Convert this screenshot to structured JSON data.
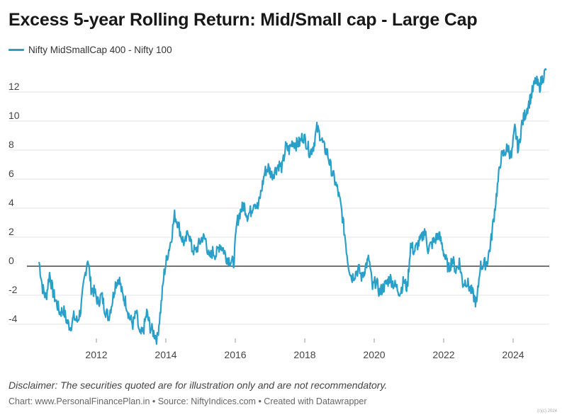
{
  "title": "Excess 5-year Rolling Return: Mid/Small cap - Large Cap",
  "legend": {
    "label": "Nifty MidSmallCap 400 - Nifty 100",
    "color": "#2aa0c9"
  },
  "disclaimer": "Disclaimer: The securities quoted are for illustration only and are not recommendatory.",
  "credit": "Chart: www.PersonalFinancePlan.in • Source: NiftyIndices.com • Created with Datawrapper",
  "watermark": "(r)(c) 2024",
  "chart_data": {
    "type": "line",
    "title": "Excess 5-year Rolling Return: Mid/Small cap - Large Cap",
    "xlabel": "",
    "ylabel": "",
    "xlim": [
      2010.3,
      2025.0
    ],
    "ylim": [
      -5.2,
      13.8
    ],
    "x_ticks": [
      2012,
      2014,
      2016,
      2018,
      2020,
      2022,
      2024
    ],
    "y_ticks": [
      -4,
      -2,
      0,
      2,
      4,
      6,
      8,
      10,
      12
    ],
    "grid": true,
    "zero_line": true,
    "series": [
      {
        "name": "Nifty MidSmallCap 400 - Nifty 100",
        "color": "#2aa0c9",
        "x": [
          2010.35,
          2010.45,
          2010.55,
          2010.65,
          2010.75,
          2010.85,
          2010.95,
          2011.05,
          2011.15,
          2011.25,
          2011.35,
          2011.45,
          2011.55,
          2011.65,
          2011.75,
          2011.85,
          2011.95,
          2012.05,
          2012.15,
          2012.25,
          2012.35,
          2012.45,
          2012.55,
          2012.65,
          2012.75,
          2012.85,
          2012.95,
          2013.05,
          2013.15,
          2013.25,
          2013.35,
          2013.45,
          2013.55,
          2013.65,
          2013.75,
          2013.85,
          2013.95,
          2014.05,
          2014.15,
          2014.25,
          2014.35,
          2014.45,
          2014.55,
          2014.65,
          2014.75,
          2014.85,
          2014.95,
          2015.05,
          2015.15,
          2015.25,
          2015.35,
          2015.45,
          2015.55,
          2015.65,
          2015.75,
          2015.85,
          2015.95,
          2016.05,
          2016.15,
          2016.25,
          2016.35,
          2016.45,
          2016.55,
          2016.65,
          2016.75,
          2016.85,
          2016.95,
          2017.05,
          2017.15,
          2017.25,
          2017.35,
          2017.45,
          2017.55,
          2017.65,
          2017.75,
          2017.85,
          2017.95,
          2018.05,
          2018.15,
          2018.25,
          2018.35,
          2018.45,
          2018.55,
          2018.65,
          2018.75,
          2018.85,
          2018.95,
          2019.05,
          2019.15,
          2019.25,
          2019.35,
          2019.45,
          2019.55,
          2019.65,
          2019.75,
          2019.85,
          2019.95,
          2020.05,
          2020.15,
          2020.25,
          2020.35,
          2020.45,
          2020.55,
          2020.65,
          2020.75,
          2020.85,
          2020.95,
          2021.05,
          2021.15,
          2021.25,
          2021.35,
          2021.45,
          2021.55,
          2021.65,
          2021.75,
          2021.85,
          2021.95,
          2022.05,
          2022.15,
          2022.25,
          2022.35,
          2022.45,
          2022.55,
          2022.65,
          2022.75,
          2022.85,
          2022.95,
          2023.05,
          2023.15,
          2023.25,
          2023.35,
          2023.45,
          2023.55,
          2023.65,
          2023.75,
          2023.85,
          2023.95,
          2024.05,
          2024.15,
          2024.25,
          2024.35,
          2024.45,
          2024.55,
          2024.65,
          2024.75,
          2024.85,
          2024.95
        ],
        "y": [
          0.3,
          -1.5,
          -2.2,
          -0.5,
          -1.8,
          -2.5,
          -3.2,
          -3.0,
          -3.8,
          -4.2,
          -3.5,
          -3.8,
          -3.0,
          -1.0,
          0.6,
          -1.5,
          -1.8,
          -2.5,
          -2.0,
          -3.0,
          -3.5,
          -2.5,
          -1.2,
          -0.8,
          -2.0,
          -2.5,
          -3.5,
          -4.0,
          -3.2,
          -4.8,
          -4.5,
          -3.2,
          -4.2,
          -4.6,
          -5.0,
          -3.0,
          -0.5,
          0.8,
          1.8,
          3.5,
          3.0,
          2.0,
          1.5,
          2.5,
          1.2,
          1.0,
          1.5,
          2.0,
          1.8,
          0.5,
          1.0,
          0.8,
          1.5,
          1.2,
          0.6,
          0.4,
          0.2,
          3.0,
          3.8,
          4.2,
          3.5,
          3.8,
          4.5,
          4.0,
          5.2,
          6.5,
          6.8,
          6.3,
          6.6,
          7.0,
          6.8,
          8.2,
          8.0,
          8.6,
          8.4,
          8.5,
          9.0,
          8.5,
          7.8,
          8.3,
          9.5,
          9.0,
          8.2,
          7.8,
          6.8,
          6.0,
          5.2,
          4.0,
          2.2,
          0.2,
          -0.8,
          -0.5,
          -0.2,
          -0.8,
          0.0,
          0.5,
          -1.5,
          -1.0,
          -1.8,
          -1.5,
          -1.2,
          -0.8,
          -1.2,
          -1.5,
          -1.8,
          -1.0,
          -1.5,
          1.5,
          1.0,
          1.5,
          1.8,
          2.5,
          1.2,
          1.5,
          1.8,
          2.2,
          1.5,
          0.5,
          -0.2,
          0.5,
          -0.3,
          0.3,
          -1.2,
          -1.0,
          -1.5,
          -2.0,
          -2.6,
          0.0,
          0.1,
          0.3,
          1.5,
          3.5,
          5.5,
          7.5,
          7.8,
          8.2,
          7.5,
          9.5,
          8.0,
          9.8,
          10.5,
          11.2,
          12.0,
          12.8,
          12.3,
          13.0,
          13.5
        ]
      }
    ]
  }
}
